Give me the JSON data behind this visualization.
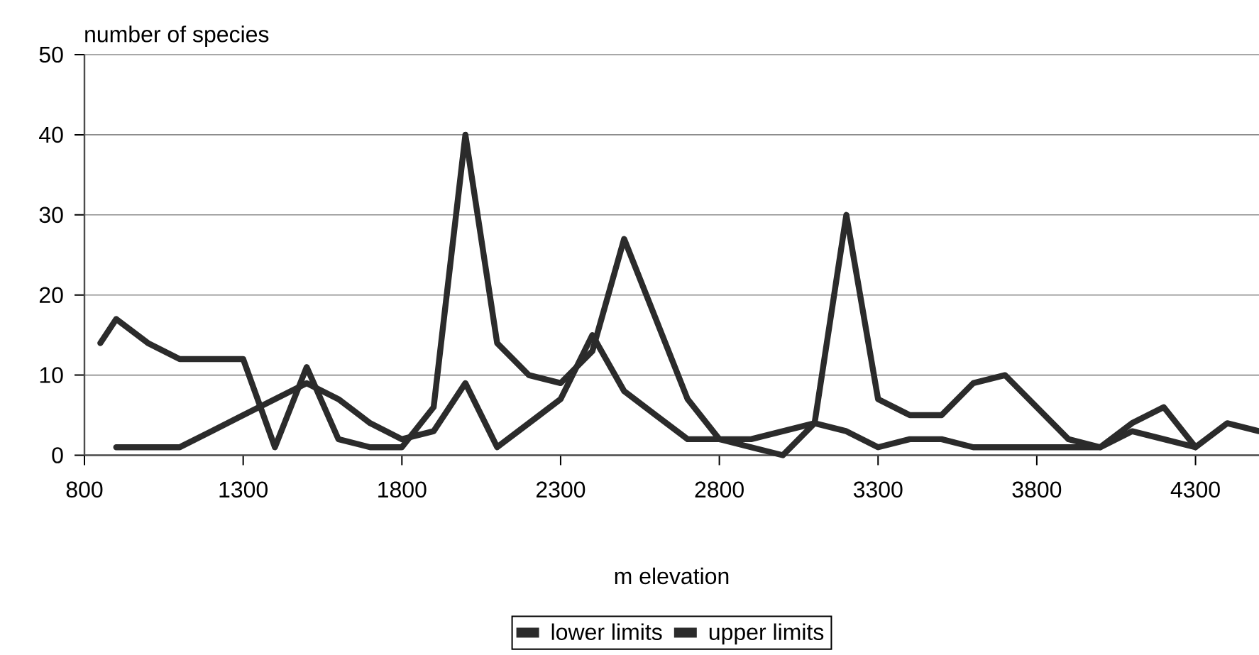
{
  "chart_data": {
    "type": "line",
    "ylabel": "number of species",
    "xlabel": "m elevation",
    "xlim": [
      800,
      4500
    ],
    "ylim": [
      0,
      50
    ],
    "xticks": [
      800,
      1300,
      1800,
      2300,
      2800,
      3300,
      3800,
      4300
    ],
    "yticks": [
      0,
      10,
      20,
      30,
      40,
      50
    ],
    "grid": "y",
    "legend": "bottom",
    "marker": "none",
    "line_style": "solid",
    "series": [
      {
        "name": "lower limits",
        "color": "#2b2b2b",
        "x": [
          850,
          900,
          1000,
          1100,
          1200,
          1300,
          1400,
          1500,
          1600,
          1700,
          1800,
          1900,
          2000,
          2100,
          2200,
          2300,
          2400,
          2500,
          2600,
          2700,
          2800,
          2900,
          3000,
          3100,
          3200,
          3300,
          3400,
          3500,
          3600,
          3700,
          3800,
          3900,
          4000,
          4100,
          4200,
          4300,
          4400,
          4500
        ],
        "values": [
          14,
          17,
          14,
          12,
          12,
          12,
          1,
          11,
          2,
          1,
          1,
          6,
          40,
          14,
          10,
          9,
          13,
          27,
          17,
          7,
          2,
          1,
          0,
          4,
          30,
          7,
          5,
          5,
          9,
          10,
          6,
          2,
          1,
          4,
          6,
          1,
          4,
          3
        ]
      },
      {
        "name": "upper limits",
        "color": "#2b2b2b",
        "x": [
          900,
          1000,
          1100,
          1200,
          1300,
          1400,
          1500,
          1600,
          1700,
          1800,
          1900,
          2000,
          2100,
          2200,
          2300,
          2400,
          2500,
          2600,
          2700,
          2800,
          2900,
          3000,
          3100,
          3200,
          3300,
          3400,
          3500,
          3600,
          3700,
          3800,
          3900,
          4000,
          4100,
          4200,
          4300
        ],
        "values": [
          1,
          1,
          1,
          3,
          5,
          7,
          9,
          7,
          4,
          2,
          3,
          9,
          1,
          4,
          7,
          15,
          8,
          5,
          2,
          2,
          2,
          3,
          4,
          3,
          1,
          2,
          2,
          1,
          1,
          1,
          1,
          1,
          3,
          2,
          1
        ]
      }
    ]
  }
}
